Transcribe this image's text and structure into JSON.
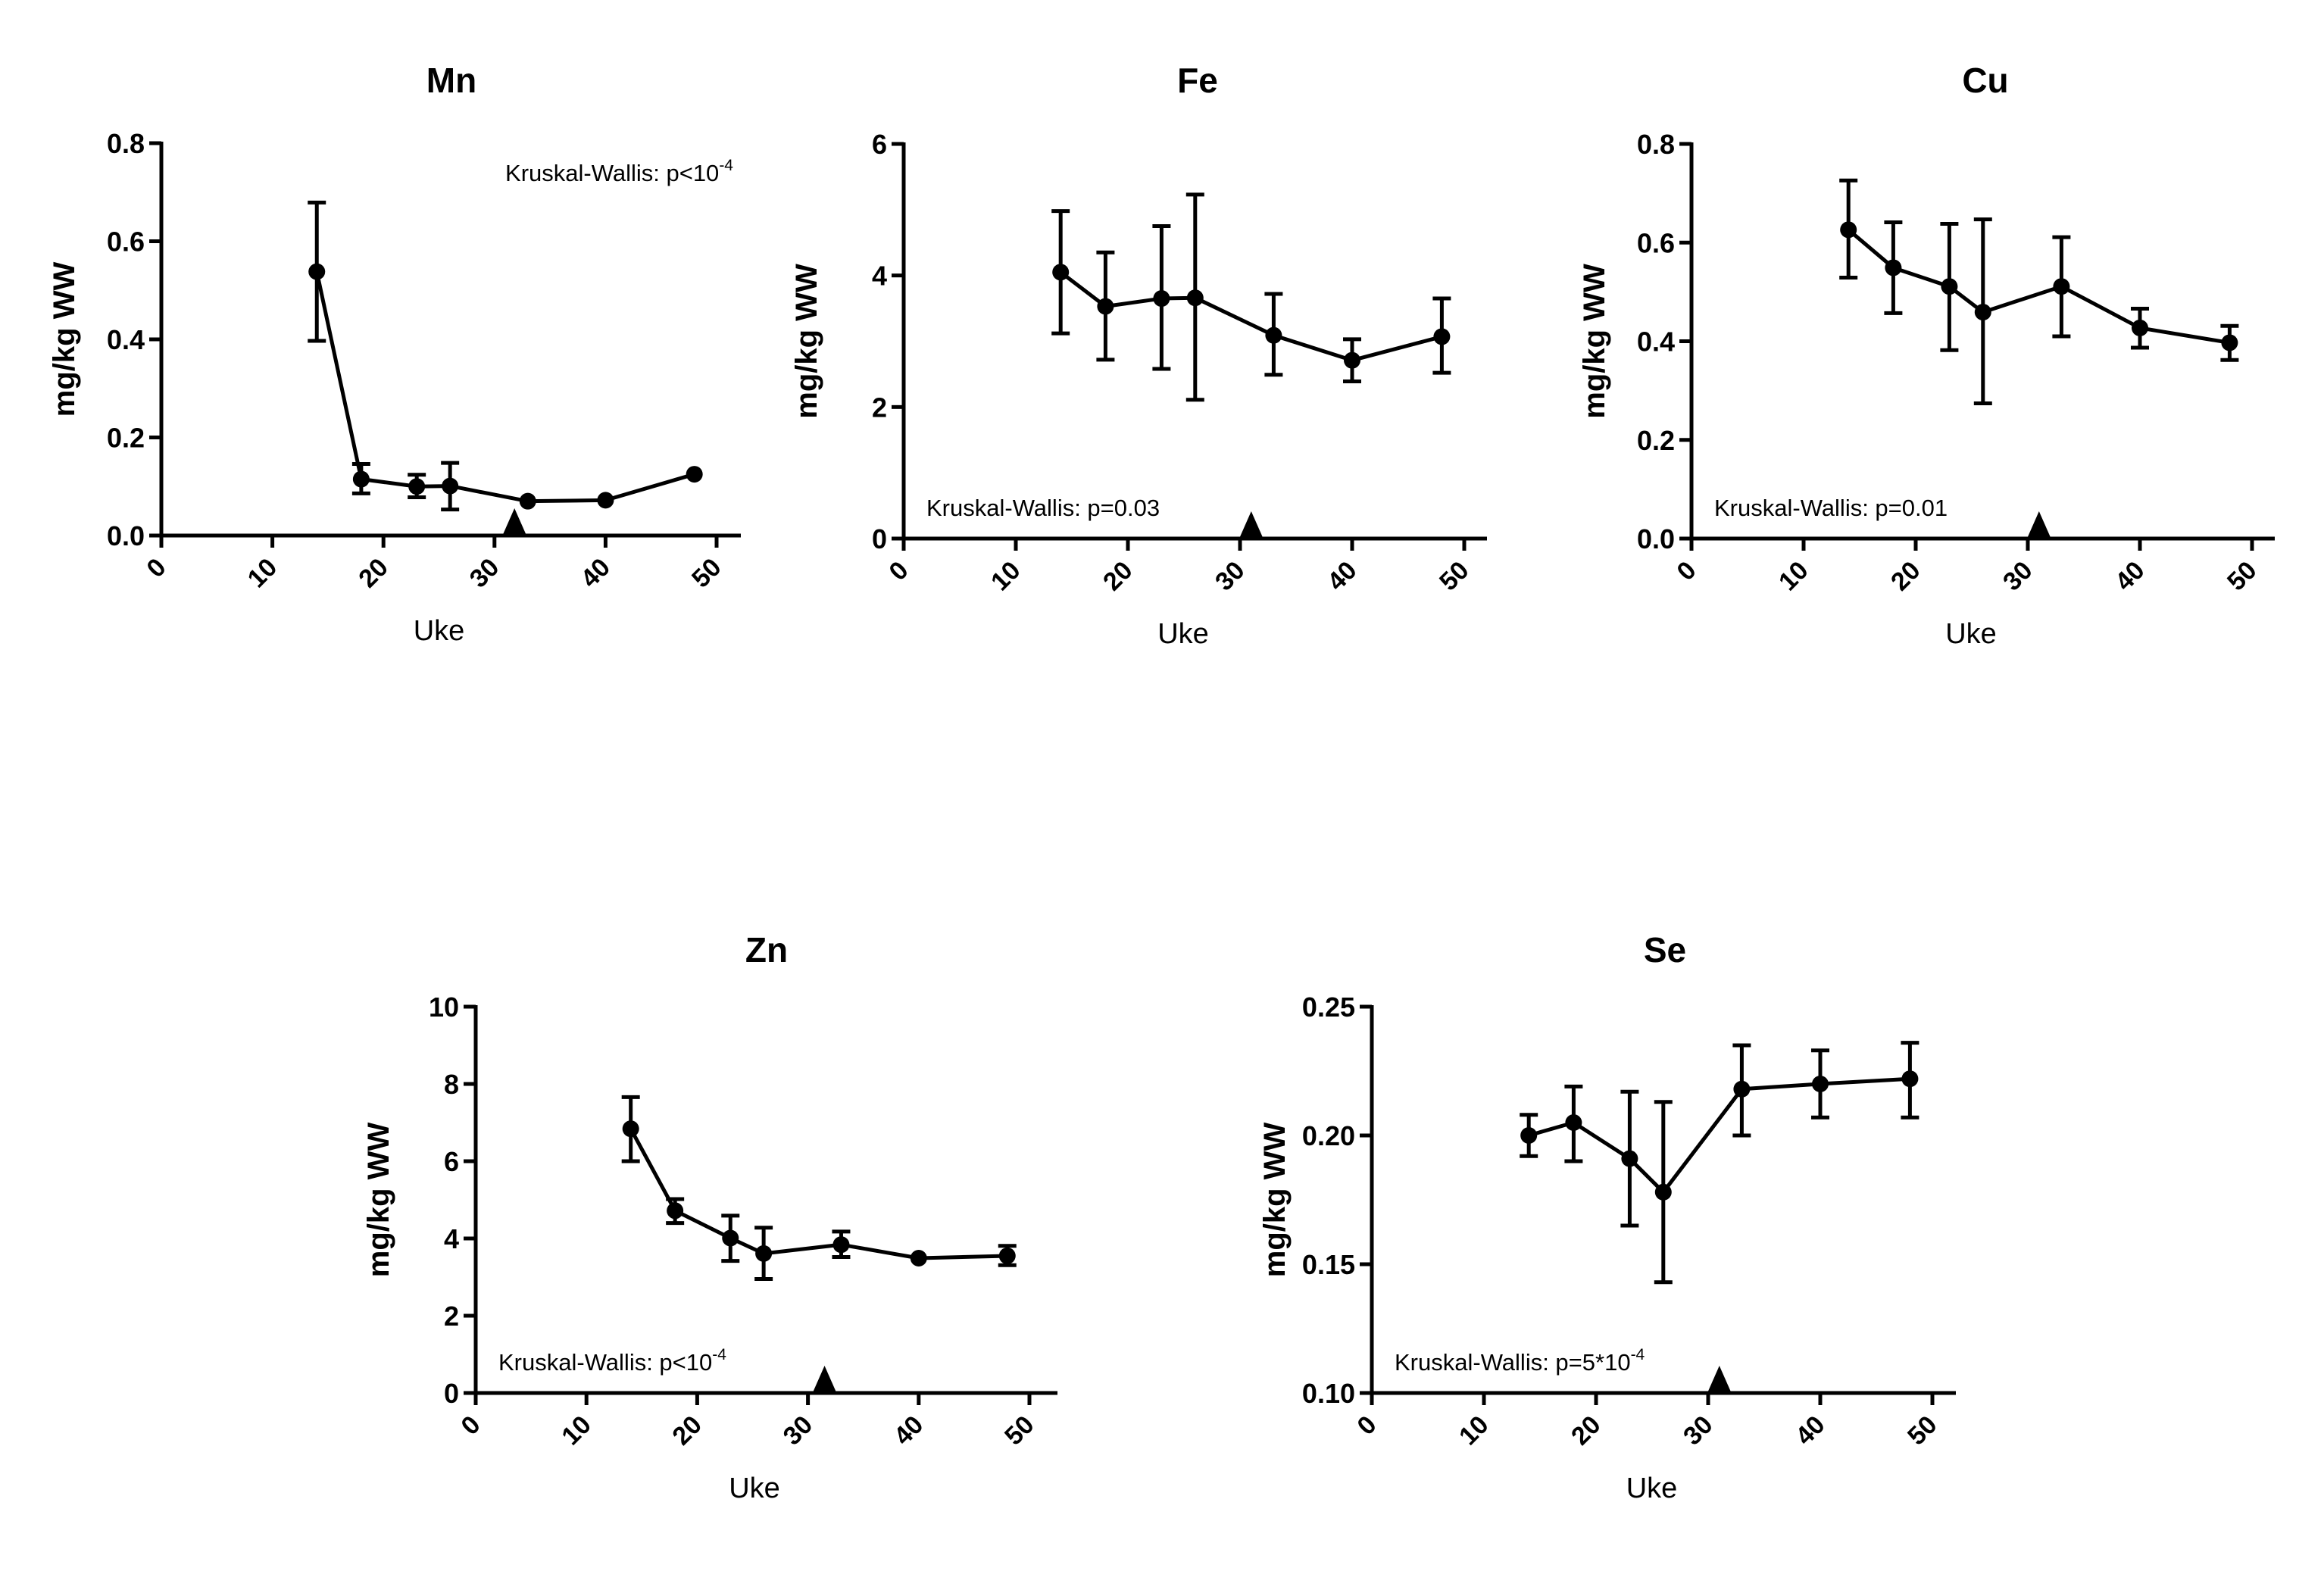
{
  "figure": {
    "marker_color": "#000000",
    "line_color": "#000000",
    "background": "#ffffff"
  },
  "chart_data": [
    {
      "type": "line",
      "title": "Mn",
      "xlabel": "Uke",
      "ylabel": "mg/kg WW",
      "xlim": [
        0,
        52
      ],
      "ylim": [
        0,
        0.8
      ],
      "xticks": [
        0,
        10,
        20,
        30,
        40,
        50
      ],
      "xtick_labels": [
        "0",
        "10",
        "20",
        "30",
        "40",
        "50"
      ],
      "yticks": [
        0,
        0.2,
        0.4,
        0.6,
        0.8
      ],
      "ytick_labels": [
        "0.0",
        "0.2",
        "0.4",
        "0.6",
        "0.8"
      ],
      "grid": false,
      "annotation": {
        "text": "Kruskal-Wallis: p<10",
        "superscript": "-4",
        "placement": "top-right"
      },
      "marker_triangle_x": 31.8,
      "x": [
        14,
        18,
        23,
        26,
        33,
        40,
        48
      ],
      "values": [
        0.538,
        0.115,
        0.1,
        0.101,
        0.07,
        0.072,
        0.125
      ],
      "error_upper": [
        0.679,
        0.146,
        0.124,
        0.148,
        null,
        null,
        null
      ],
      "error_lower": [
        0.397,
        0.086,
        0.078,
        0.053,
        null,
        null,
        null
      ]
    },
    {
      "type": "line",
      "title": "Fe",
      "xlabel": "Uke",
      "ylabel": "mg/kg WW",
      "xlim": [
        0,
        52
      ],
      "ylim": [
        0,
        6
      ],
      "xticks": [
        0,
        10,
        20,
        30,
        40,
        50
      ],
      "xtick_labels": [
        "0",
        "10",
        "20",
        "30",
        "40",
        "50"
      ],
      "yticks": [
        0,
        2,
        4,
        6
      ],
      "ytick_labels": [
        "0",
        "2",
        "4",
        "6"
      ],
      "grid": false,
      "annotation": {
        "text": "Kruskal-Wallis: p=0.03",
        "superscript": "",
        "placement": "bottom-left"
      },
      "marker_triangle_x": 31,
      "x": [
        14,
        18,
        23,
        26,
        33,
        40,
        48
      ],
      "values": [
        4.05,
        3.53,
        3.65,
        3.66,
        3.09,
        2.71,
        3.07
      ],
      "error_upper": [
        4.98,
        4.35,
        4.75,
        5.23,
        3.72,
        3.03,
        3.65
      ],
      "error_lower": [
        3.12,
        2.72,
        2.58,
        2.11,
        2.49,
        2.39,
        2.52
      ]
    },
    {
      "type": "line",
      "title": "Cu",
      "xlabel": "Uke",
      "ylabel": "mg/kg WW",
      "xlim": [
        0,
        52
      ],
      "ylim": [
        0,
        0.8
      ],
      "xticks": [
        0,
        10,
        20,
        30,
        40,
        50
      ],
      "xtick_labels": [
        "0",
        "10",
        "20",
        "30",
        "40",
        "50"
      ],
      "yticks": [
        0,
        0.2,
        0.4,
        0.6,
        0.8
      ],
      "ytick_labels": [
        "0.0",
        "0.2",
        "0.4",
        "0.6",
        "0.8"
      ],
      "grid": false,
      "annotation": {
        "text": "Kruskal-Wallis: p=0.01",
        "superscript": "",
        "placement": "bottom-left"
      },
      "marker_triangle_x": 31,
      "x": [
        14,
        18,
        23,
        26,
        33,
        40,
        48
      ],
      "values": [
        0.626,
        0.549,
        0.511,
        0.459,
        0.511,
        0.427,
        0.397
      ],
      "error_upper": [
        0.726,
        0.641,
        0.638,
        0.647,
        0.611,
        0.466,
        0.431
      ],
      "error_lower": [
        0.529,
        0.457,
        0.382,
        0.274,
        0.41,
        0.387,
        0.362
      ]
    },
    {
      "type": "line",
      "title": "Zn",
      "xlabel": "Uke",
      "ylabel": "mg/kg WW",
      "xlim": [
        0,
        52
      ],
      "ylim": [
        0,
        10
      ],
      "xticks": [
        0,
        10,
        20,
        30,
        40,
        50
      ],
      "xtick_labels": [
        "0",
        "10",
        "20",
        "30",
        "40",
        "50"
      ],
      "yticks": [
        0,
        2,
        4,
        6,
        8,
        10
      ],
      "ytick_labels": [
        "0",
        "2",
        "4",
        "6",
        "8",
        "10"
      ],
      "grid": false,
      "annotation": {
        "text": "Kruskal-Wallis: p<10",
        "superscript": "-4",
        "placement": "bottom-left"
      },
      "marker_triangle_x": 31.5,
      "x": [
        14,
        18,
        23,
        26,
        33,
        40,
        48
      ],
      "values": [
        6.84,
        4.72,
        4.01,
        3.61,
        3.84,
        3.49,
        3.55
      ],
      "error_upper": [
        7.66,
        5.02,
        4.59,
        4.28,
        4.18,
        null,
        3.81
      ],
      "error_lower": [
        6.0,
        4.4,
        3.42,
        2.95,
        3.52,
        null,
        3.31
      ]
    },
    {
      "type": "line",
      "title": "Se",
      "xlabel": "Uke",
      "ylabel": "mg/kg WW",
      "xlim": [
        0,
        52
      ],
      "ylim": [
        0.1,
        0.25
      ],
      "xticks": [
        0,
        10,
        20,
        30,
        40,
        50
      ],
      "xtick_labels": [
        "0",
        "10",
        "20",
        "30",
        "40",
        "50"
      ],
      "yticks": [
        0.1,
        0.15,
        0.2,
        0.25
      ],
      "ytick_labels": [
        "0.10",
        "0.15",
        "0.20",
        "0.25"
      ],
      "grid": false,
      "annotation": {
        "text": "Kruskal-Wallis: p=5*10",
        "superscript": "-4",
        "placement": "bottom-left"
      },
      "marker_triangle_x": 31,
      "x": [
        14,
        18,
        23,
        26,
        33,
        40,
        48
      ],
      "values": [
        0.2,
        0.205,
        0.191,
        0.178,
        0.218,
        0.22,
        0.222
      ],
      "error_upper": [
        0.208,
        0.219,
        0.217,
        0.213,
        0.235,
        0.233,
        0.236
      ],
      "error_lower": [
        0.192,
        0.19,
        0.165,
        0.143,
        0.2,
        0.207,
        0.207
      ]
    }
  ]
}
